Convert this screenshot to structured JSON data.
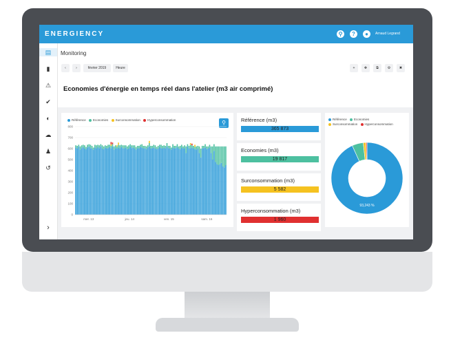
{
  "app": {
    "logo": "ENERGIENCY",
    "user": "Arnaud Legrand"
  },
  "breadcrumb": "Monitoring",
  "toolbar": {
    "period": "février 2019",
    "granularity": "Heure"
  },
  "title": "Economies d'énergie en temps réel dans l'atelier (m3 air comprimé)",
  "legend": [
    {
      "label": "Référence",
      "color": "#2a9ad8"
    },
    {
      "label": "Economies",
      "color": "#4dc0a0"
    },
    {
      "label": "Surconsommation",
      "color": "#f5c220"
    },
    {
      "label": "Hyperconsommation",
      "color": "#e03030"
    }
  ],
  "stats": [
    {
      "label": "Référence (m3)",
      "value": "365 873",
      "color": "#2a9ad8"
    },
    {
      "label": "Economies (m3)",
      "value": "19 817",
      "color": "#4dc0a0"
    },
    {
      "label": "Surconsommation (m3)",
      "value": "5 582",
      "color": "#f5c220"
    },
    {
      "label": "Hyperconsommation (m3)",
      "value": "1 960",
      "color": "#e03030"
    }
  ],
  "donut_label": "93,243 %",
  "chart_data": {
    "type": "bar",
    "stacked": true,
    "ylim": [
      0,
      800
    ],
    "yticks": [
      "800",
      "700",
      "600",
      "500",
      "400",
      "300",
      "200",
      "100",
      "0"
    ],
    "xticks": [
      "mer. 13",
      "jeu. 14",
      "ven. 15",
      "sam. 16"
    ],
    "series_names": [
      "Référence",
      "Economies",
      "Surconsommation",
      "Hyperconsommation"
    ],
    "reference": [
      610,
      600,
      620,
      590,
      605,
      615,
      600,
      595,
      610,
      620,
      605,
      600,
      590,
      610,
      600,
      615,
      605,
      620,
      600,
      595,
      610,
      600,
      605,
      615,
      600,
      620,
      590,
      605,
      600,
      610,
      600,
      615,
      605,
      600,
      610,
      595,
      600,
      620,
      605,
      610,
      600,
      590,
      605,
      600,
      615,
      610,
      600,
      605,
      595,
      610,
      620,
      600,
      605,
      610,
      600,
      595,
      600,
      615,
      605,
      600,
      610,
      600,
      620,
      605,
      600,
      590,
      610,
      600,
      605,
      615,
      600,
      595,
      610,
      600,
      605,
      560,
      620,
      600,
      605,
      610,
      600,
      595,
      590,
      600,
      560,
      520,
      600,
      605,
      610,
      595,
      600,
      610,
      560,
      500,
      580,
      480,
      460,
      450,
      460,
      470,
      440,
      430,
      450
    ],
    "economies": [
      20,
      25,
      15,
      30,
      25,
      20,
      30,
      20,
      25,
      20,
      30,
      25,
      20,
      25,
      30,
      20,
      25,
      20,
      30,
      25,
      20,
      25,
      30,
      20,
      25,
      20,
      30,
      25,
      20,
      25,
      30,
      20,
      25,
      30,
      20,
      25,
      30,
      20,
      25,
      20,
      30,
      25,
      20,
      25,
      20,
      30,
      25,
      20,
      25,
      20,
      30,
      25,
      20,
      25,
      30,
      20,
      25,
      20,
      30,
      25,
      20,
      25,
      30,
      20,
      25,
      20,
      30,
      25,
      20,
      25,
      20,
      30,
      25,
      20,
      25,
      60,
      20,
      25,
      30,
      20,
      25,
      20,
      30,
      25,
      60,
      80,
      25,
      20,
      30,
      25,
      20,
      25,
      60,
      120,
      60,
      140,
      160,
      170,
      160,
      150,
      180,
      190,
      170
    ],
    "surconsommation": [
      0,
      0,
      0,
      0,
      0,
      0,
      0,
      0,
      0,
      0,
      0,
      0,
      0,
      0,
      0,
      0,
      0,
      0,
      0,
      0,
      0,
      0,
      0,
      0,
      15,
      0,
      0,
      0,
      10,
      20,
      0,
      0,
      0,
      0,
      0,
      0,
      0,
      0,
      0,
      0,
      0,
      0,
      0,
      0,
      0,
      0,
      0,
      0,
      0,
      0,
      20,
      0,
      0,
      0,
      0,
      0,
      0,
      0,
      0,
      0,
      0,
      0,
      0,
      0,
      0,
      0,
      0,
      0,
      0,
      0,
      0,
      0,
      0,
      0,
      0,
      0,
      0,
      0,
      15,
      0,
      0,
      20,
      0,
      0,
      0,
      0,
      0,
      0,
      0,
      0,
      0,
      0,
      0,
      0,
      0,
      0,
      0,
      0,
      0,
      0,
      0,
      0,
      0
    ],
    "hyperconsommation": [
      0,
      0,
      0,
      0,
      0,
      0,
      0,
      0,
      0,
      0,
      0,
      0,
      0,
      0,
      0,
      0,
      0,
      0,
      0,
      0,
      0,
      0,
      0,
      0,
      20,
      15,
      0,
      0,
      0,
      0,
      0,
      0,
      0,
      0,
      0,
      0,
      0,
      0,
      0,
      0,
      0,
      0,
      0,
      0,
      0,
      0,
      0,
      0,
      0,
      0,
      0,
      0,
      0,
      0,
      0,
      0,
      0,
      0,
      0,
      0,
      0,
      0,
      0,
      0,
      0,
      0,
      0,
      0,
      0,
      0,
      0,
      0,
      0,
      0,
      0,
      0,
      0,
      0,
      0,
      15,
      0,
      0,
      0,
      0,
      0,
      0,
      0,
      0,
      0,
      0,
      0,
      0,
      0,
      0,
      0,
      0,
      0,
      0,
      0,
      0,
      0,
      0,
      0
    ],
    "pie": [
      {
        "name": "Référence",
        "value": 93.243
      },
      {
        "name": "Economies",
        "value": 5.1
      },
      {
        "name": "Surconsommation",
        "value": 1.2
      },
      {
        "name": "Hyperconsommation",
        "value": 0.457
      }
    ]
  }
}
